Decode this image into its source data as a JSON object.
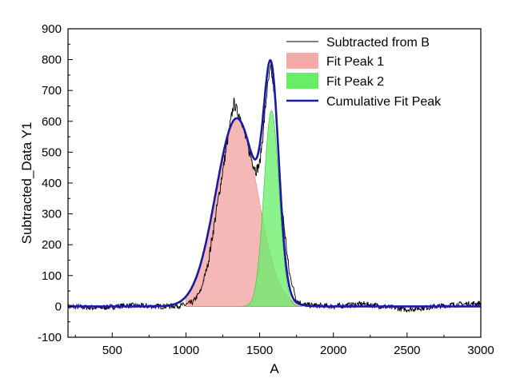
{
  "chart_data": {
    "type": "area",
    "xlabel": "A",
    "ylabel": "Subtracted_Data Y1",
    "xlim": [
      200,
      3000
    ],
    "ylim": [
      -100,
      900
    ],
    "x_ticks": [
      500,
      1000,
      1500,
      2000,
      2500,
      3000
    ],
    "x_tick_labels": [
      "500",
      "1000",
      "1500",
      "2000",
      "2500",
      "3000"
    ],
    "y_ticks": [
      -100,
      0,
      100,
      200,
      300,
      400,
      500,
      600,
      700,
      800,
      900
    ],
    "y_tick_labels": [
      "-100",
      "0",
      "100",
      "200",
      "300",
      "400",
      "500",
      "600",
      "700",
      "800",
      "900"
    ],
    "grid": false,
    "legend_position": "top-right",
    "series": [
      {
        "name": "Subtracted from B",
        "kind": "line",
        "color": "#000000",
        "x": [
          200,
          400,
          600,
          800,
          950,
          1000,
          1050,
          1100,
          1150,
          1200,
          1250,
          1300,
          1325,
          1350,
          1375,
          1400,
          1425,
          1450,
          1475,
          1500,
          1525,
          1550,
          1575,
          1600,
          1625,
          1650,
          1700,
          1750,
          1800,
          2000,
          2200,
          2500,
          2800,
          3000
        ],
        "y": [
          0,
          -5,
          3,
          0,
          2,
          5,
          15,
          50,
          140,
          290,
          440,
          590,
          660,
          630,
          610,
          555,
          510,
          470,
          440,
          460,
          570,
          700,
          775,
          690,
          520,
          330,
          110,
          20,
          5,
          0,
          8,
          -10,
          5,
          10
        ]
      },
      {
        "name": "Fit Peak 1",
        "kind": "area",
        "color": "#f5aaaa",
        "center": 1345,
        "height": 610,
        "fwhm": 335
      },
      {
        "name": "Fit Peak 2",
        "kind": "area",
        "color": "#66ee66",
        "center": 1580,
        "height": 635,
        "fwhm": 120
      },
      {
        "name": "Cumulative Fit Peak",
        "kind": "line",
        "color": "#1a1aa0"
      }
    ]
  }
}
